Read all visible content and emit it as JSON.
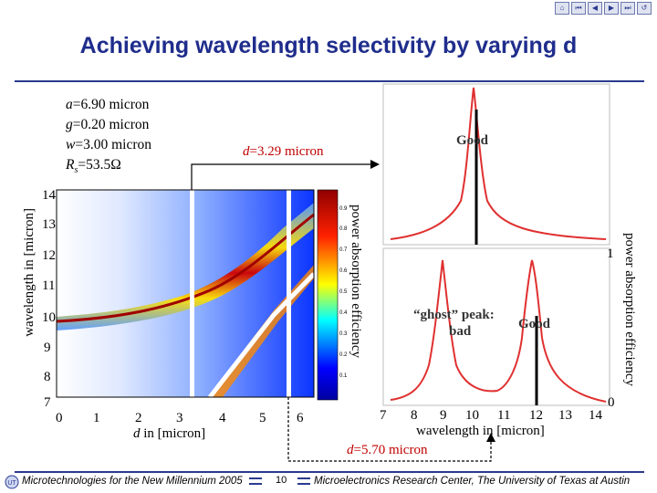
{
  "slide": {
    "title": "Achieving wavelength selectivity by varying d",
    "page_number": "10"
  },
  "params": {
    "a_var": "a",
    "a_val": "=6.90 micron",
    "g_var": "g",
    "g_val": "=0.20 micron",
    "w_var": "w",
    "w_val": "=3.00 micron",
    "rs_var": "R",
    "rs_sub": "s",
    "rs_val": "=53.5Ω"
  },
  "map_plot": {
    "y_ticks": [
      "14",
      "13",
      "12",
      "11",
      "10",
      "9",
      "8",
      "7"
    ],
    "x_ticks": [
      "0",
      "1",
      "2",
      "3",
      "4",
      "5",
      "6"
    ],
    "ylabel": "wavelength in [micron]",
    "xlabel_var": "d",
    "xlabel_rest": " in [micron]",
    "colorbar_label": "power absorption efficiency",
    "colorbar_ticks": [
      "0.9",
      "0.8",
      "0.7",
      "0.6",
      "0.5",
      "0.4",
      "0.3",
      "0.2",
      "0.1"
    ]
  },
  "top_plot": {
    "label_var": "d",
    "label_rest": "=3.29 micron",
    "annotation": "Good"
  },
  "bottom_plot": {
    "x_ticks": [
      "7",
      "8",
      "9",
      "10",
      "11",
      "12",
      "13",
      "14"
    ],
    "xlabel": "wavelength in [micron]",
    "y_max_label": "1",
    "y_min_label": "0",
    "ylabel": "power absorption efficiency",
    "ghost_label": "“ghost” peak:",
    "bad_label": "bad",
    "good_label": "Good",
    "d_var": "d",
    "d_rest": "=5.70 micron"
  },
  "footer": {
    "left": "Microtechnologies for the New Millennium 2005",
    "right": "Microelectronics Research Center, The University of Texas at Austin",
    "logo": "UT"
  },
  "nav": {
    "icons": [
      "home-icon",
      "first-icon",
      "prev-icon",
      "next-icon",
      "last-icon",
      "return-icon"
    ]
  },
  "colors": {
    "title": "#1f2d8c",
    "curve": "#e03030",
    "accent_line": "#2b3a8f"
  }
}
